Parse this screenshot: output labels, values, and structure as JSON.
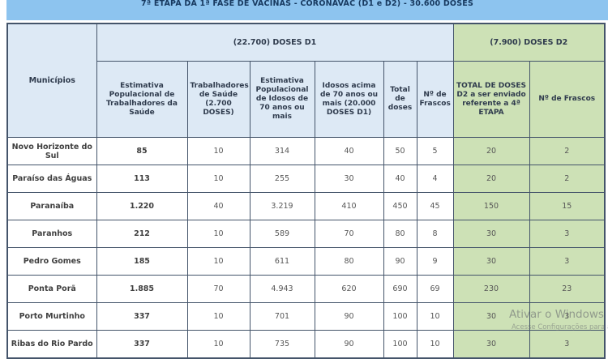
{
  "title": "7ª ETAPA DA 1ª FASE DE VACINAS - CORONAVAC (D1 e D2) - 30.600 DOSES",
  "table": {
    "corner_header": "Municípios",
    "group_headers": {
      "d1": "(22.700) DOSES D1",
      "d2": "(7.900) DOSES D2"
    },
    "columns": [
      "Estimativa Populacional de Trabalhadores da Saúde",
      "Trabalhadores de Saúde (2.700 DOSES)",
      "Estimativa Populacional de Idosos de 70 anos ou mais",
      "Idosos acima de 70 anos ou mais (20.000 DOSES D1)",
      "Total de doses",
      "Nº de Frascos",
      "TOTAL DE DOSES D2 a ser enviado referente a 4ª ETAPA",
      "Nº de Frascos"
    ],
    "rows": [
      {
        "municipio": "Novo Horizonte do Sul",
        "values": [
          "85",
          "10",
          "314",
          "40",
          "50",
          "5",
          "20",
          "2"
        ]
      },
      {
        "municipio": "Paraíso das Águas",
        "values": [
          "113",
          "10",
          "255",
          "30",
          "40",
          "4",
          "20",
          "2"
        ]
      },
      {
        "municipio": "Paranaíba",
        "values": [
          "1.220",
          "40",
          "3.219",
          "410",
          "450",
          "45",
          "150",
          "15"
        ]
      },
      {
        "municipio": "Paranhos",
        "values": [
          "212",
          "10",
          "589",
          "70",
          "80",
          "8",
          "30",
          "3"
        ]
      },
      {
        "municipio": "Pedro Gomes",
        "values": [
          "185",
          "10",
          "611",
          "80",
          "90",
          "9",
          "30",
          "3"
        ]
      },
      {
        "municipio": "Ponta Porã",
        "values": [
          "1.885",
          "70",
          "4.943",
          "620",
          "690",
          "69",
          "230",
          "23"
        ]
      },
      {
        "municipio": "Porto Murtinho",
        "values": [
          "337",
          "10",
          "701",
          "90",
          "100",
          "10",
          "30",
          "3"
        ]
      },
      {
        "municipio": "Ribas do Rio Pardo",
        "values": [
          "337",
          "10",
          "735",
          "90",
          "100",
          "10",
          "30",
          "3"
        ]
      }
    ]
  },
  "watermark": {
    "line1": "Ativar o Windows",
    "line2": "Acesse Configurações para ativar o Windows."
  },
  "colors": {
    "banner_blue": "#8dc4ef",
    "header_blue": "#dde9f5",
    "d2_green": "#cde1b6",
    "border": "#44546a",
    "title_text": "#17395f"
  }
}
